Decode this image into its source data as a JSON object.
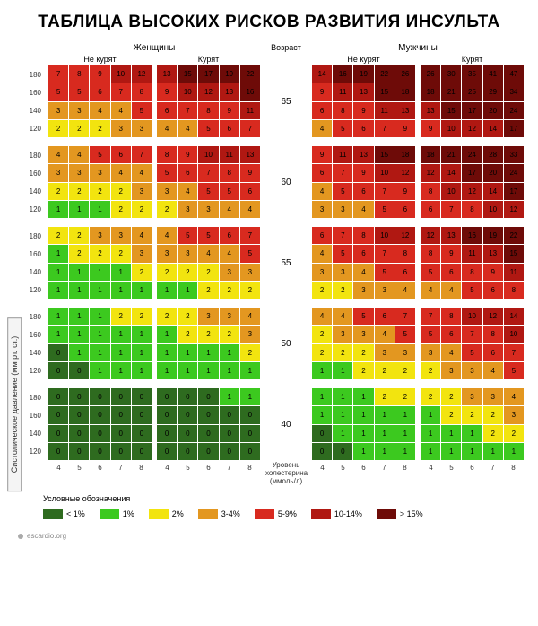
{
  "title": "ТАБЛИЦА ВЫСОКИХ РИСКОВ РАЗВИТИЯ ИНСУЛЬТА",
  "headers": {
    "women": "Женщины",
    "men": "Мужчины",
    "age": "Возраст",
    "nonsmoker": "Не курят",
    "smoker": "Курят"
  },
  "axes": {
    "y_label": "Систолическое давление (мм рт. ст.)",
    "bp_ticks": [
      180,
      160,
      140,
      120
    ],
    "chol_ticks": [
      4,
      5,
      6,
      7,
      8
    ],
    "chol_label_line1": "Уровень",
    "chol_label_line2": "холестерина",
    "chol_label_line3": "(ммоль/л)"
  },
  "ages": [
    65,
    60,
    55,
    50,
    40
  ],
  "colors": {
    "c0": "#2e6b1f",
    "c1": "#3cc91f",
    "c2": "#f2e40f",
    "c3": "#e39720",
    "c4": "#d82a1f",
    "c5": "#b01812",
    "c6": "#6e0b08"
  },
  "bucket_map": {
    "0": "c0",
    "1": "c1",
    "2": "c2",
    "3": "c3",
    "4": "c3",
    "5": "c4",
    "6": "c4",
    "7": "c4",
    "8": "c4",
    "9": "c4",
    "10": "c5",
    "11": "c5",
    "12": "c5",
    "13": "c5",
    "14": "c5"
  },
  "highest_bucket": "c6",
  "blocks": {
    "65": {
      "women_nonsmoker": [
        [
          7,
          8,
          9,
          10,
          12
        ],
        [
          5,
          5,
          6,
          7,
          8
        ],
        [
          3,
          3,
          4,
          4,
          5
        ],
        [
          2,
          2,
          2,
          3,
          3
        ]
      ],
      "women_smoker": [
        [
          13,
          15,
          17,
          19,
          22
        ],
        [
          9,
          10,
          12,
          13,
          16
        ],
        [
          6,
          7,
          8,
          9,
          11
        ],
        [
          4,
          4,
          5,
          6,
          7
        ]
      ],
      "men_nonsmoker": [
        [
          14,
          16,
          19,
          22,
          26
        ],
        [
          9,
          11,
          13,
          15,
          18
        ],
        [
          6,
          8,
          9,
          11,
          13
        ],
        [
          4,
          5,
          6,
          7,
          9
        ]
      ],
      "men_smoker": [
        [
          26,
          30,
          35,
          41,
          47
        ],
        [
          18,
          21,
          25,
          29,
          34
        ],
        [
          13,
          15,
          17,
          20,
          24
        ],
        [
          9,
          10,
          12,
          14,
          17
        ]
      ]
    },
    "60": {
      "women_nonsmoker": [
        [
          4,
          4,
          5,
          6,
          7
        ],
        [
          3,
          3,
          3,
          4,
          4
        ],
        [
          2,
          2,
          2,
          2,
          3
        ],
        [
          1,
          1,
          1,
          2,
          2
        ]
      ],
      "women_smoker": [
        [
          8,
          9,
          10,
          11,
          13
        ],
        [
          5,
          6,
          7,
          8,
          9
        ],
        [
          3,
          4,
          5,
          5,
          6
        ],
        [
          2,
          3,
          3,
          4,
          4
        ]
      ],
      "men_nonsmoker": [
        [
          9,
          11,
          13,
          15,
          18
        ],
        [
          6,
          7,
          9,
          10,
          12
        ],
        [
          4,
          5,
          6,
          7,
          9
        ],
        [
          3,
          3,
          4,
          5,
          6
        ]
      ],
      "men_smoker": [
        [
          18,
          21,
          24,
          28,
          33
        ],
        [
          12,
          14,
          17,
          20,
          24
        ],
        [
          8,
          10,
          12,
          14,
          17
        ],
        [
          6,
          7,
          8,
          10,
          12
        ]
      ]
    },
    "55": {
      "women_nonsmoker": [
        [
          2,
          2,
          3,
          3,
          4
        ],
        [
          1,
          2,
          2,
          2,
          3
        ],
        [
          1,
          1,
          1,
          1,
          2
        ],
        [
          1,
          1,
          1,
          1,
          1
        ]
      ],
      "women_smoker": [
        [
          4,
          5,
          5,
          6,
          7
        ],
        [
          3,
          3,
          4,
          4,
          5
        ],
        [
          2,
          2,
          2,
          3,
          3
        ],
        [
          1,
          1,
          2,
          2,
          2
        ]
      ],
      "men_nonsmoker": [
        [
          6,
          7,
          8,
          10,
          12
        ],
        [
          4,
          5,
          6,
          7,
          8
        ],
        [
          3,
          3,
          4,
          5,
          6
        ],
        [
          2,
          2,
          3,
          3,
          4
        ]
      ],
      "men_smoker": [
        [
          12,
          13,
          16,
          19,
          22
        ],
        [
          8,
          9,
          11,
          13,
          15
        ],
        [
          5,
          6,
          8,
          9,
          11
        ],
        [
          4,
          4,
          5,
          6,
          8
        ]
      ]
    },
    "50": {
      "women_nonsmoker": [
        [
          1,
          1,
          1,
          2,
          2
        ],
        [
          1,
          1,
          1,
          1,
          1
        ],
        [
          0,
          1,
          1,
          1,
          1
        ],
        [
          0,
          0,
          1,
          1,
          1
        ]
      ],
      "women_smoker": [
        [
          2,
          2,
          3,
          3,
          4
        ],
        [
          1,
          2,
          2,
          2,
          3
        ],
        [
          1,
          1,
          1,
          1,
          2
        ],
        [
          1,
          1,
          1,
          1,
          1
        ]
      ],
      "men_nonsmoker": [
        [
          4,
          4,
          5,
          6,
          7
        ],
        [
          2,
          3,
          3,
          4,
          5
        ],
        [
          2,
          2,
          2,
          3,
          3
        ],
        [
          1,
          1,
          2,
          2,
          2
        ]
      ],
      "men_smoker": [
        [
          7,
          8,
          10,
          12,
          14
        ],
        [
          5,
          6,
          7,
          8,
          10
        ],
        [
          3,
          4,
          5,
          6,
          7
        ],
        [
          2,
          3,
          3,
          4,
          5
        ]
      ]
    },
    "40": {
      "women_nonsmoker": [
        [
          0,
          0,
          0,
          0,
          0
        ],
        [
          0,
          0,
          0,
          0,
          0
        ],
        [
          0,
          0,
          0,
          0,
          0
        ],
        [
          0,
          0,
          0,
          0,
          0
        ]
      ],
      "women_smoker": [
        [
          0,
          0,
          0,
          1,
          1
        ],
        [
          0,
          0,
          0,
          0,
          0
        ],
        [
          0,
          0,
          0,
          0,
          0
        ],
        [
          0,
          0,
          0,
          0,
          0
        ]
      ],
      "men_nonsmoker": [
        [
          1,
          1,
          1,
          2,
          2
        ],
        [
          1,
          1,
          1,
          1,
          1
        ],
        [
          0,
          1,
          1,
          1,
          1
        ],
        [
          0,
          0,
          1,
          1,
          1
        ]
      ],
      "men_smoker": [
        [
          2,
          2,
          3,
          3,
          4
        ],
        [
          1,
          2,
          2,
          2,
          3
        ],
        [
          1,
          1,
          1,
          2,
          2
        ],
        [
          1,
          1,
          1,
          1,
          1
        ]
      ]
    }
  },
  "legend": {
    "title": "Условные обозначения",
    "items": [
      {
        "color": "c0",
        "label": "< 1%"
      },
      {
        "color": "c1",
        "label": "1%"
      },
      {
        "color": "c2",
        "label": "2%"
      },
      {
        "color": "c3",
        "label": "3-4%"
      },
      {
        "color": "c4",
        "label": "5-9%"
      },
      {
        "color": "c5",
        "label": "10-14%"
      },
      {
        "color": "c6",
        "label": "> 15%"
      }
    ]
  },
  "footer": "escardio.org",
  "style": {
    "cell_fontsize": 8,
    "header_fontsize": 10,
    "title_fontsize": 19,
    "background": "#ffffff",
    "grid_gap": 1,
    "block_height": 80
  }
}
